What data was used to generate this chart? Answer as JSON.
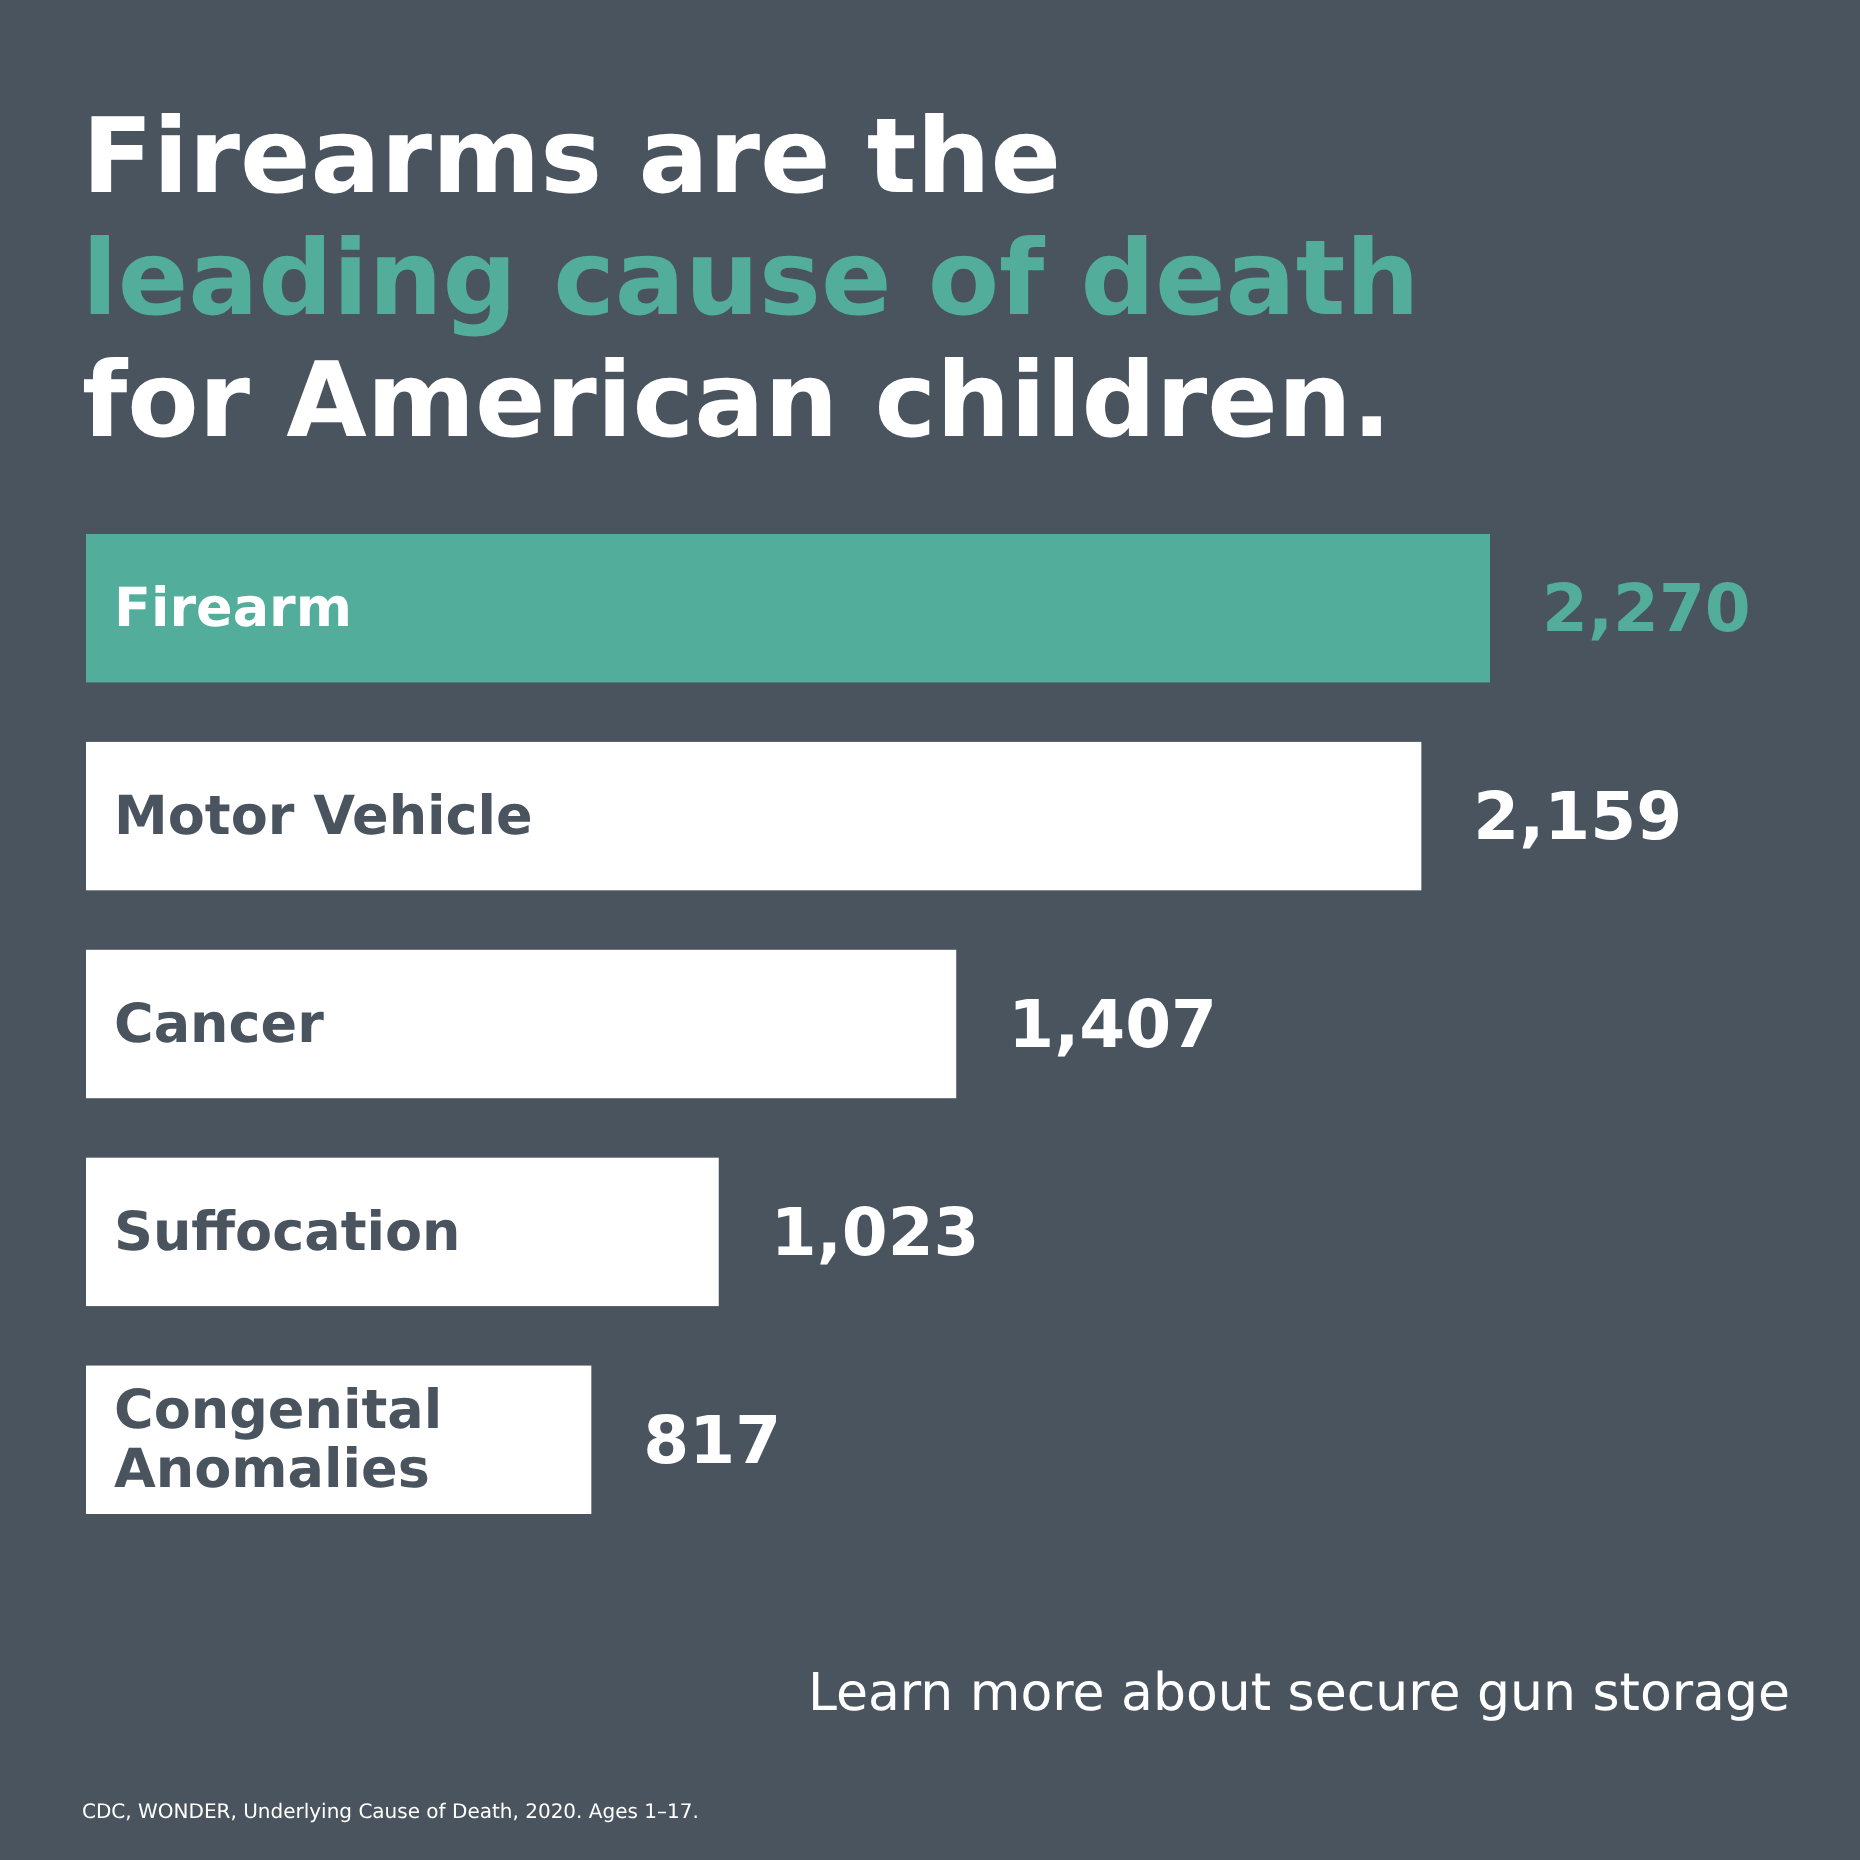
{
  "chart_data": {
    "type": "bar",
    "orientation": "horizontal",
    "title": "Firearms are the\nleading cause of death\nfor American children.",
    "categories": [
      "Firearm",
      "Motor Vehicle",
      "Cancer",
      "Suffocation",
      "Congenital Anomalies"
    ],
    "values": [
      2270,
      2159,
      1407,
      1023,
      817
    ],
    "colors": [
      "#52ad9b",
      "#ffffff",
      "#ffffff",
      "#ffffff",
      "#ffffff"
    ],
    "value_labels": [
      "2,270",
      "2,159",
      "1,407",
      "1,023",
      "817"
    ],
    "annotations": [
      "Learn more about secure gun storage",
      "CDC, WONDER, Underlying Cause of Death, 2020. Ages 1–17."
    ]
  }
}
